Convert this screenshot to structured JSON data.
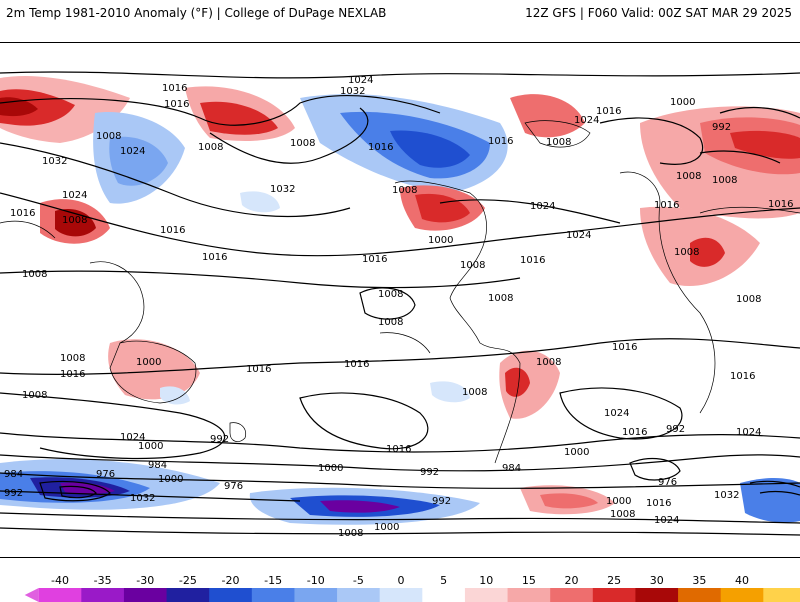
{
  "header": {
    "title_left": "2m Temp 1981-2010 Anomaly (°F) | College of DuPage NEXLAB",
    "title_right": "12Z GFS | F060 Valid: 00Z SAT MAR 29 2025"
  },
  "colorbar": {
    "tick_labels": [
      "-40",
      "-35",
      "-30",
      "-25",
      "-20",
      "-15",
      "-10",
      "-5",
      "0",
      "5",
      "10",
      "15",
      "20",
      "25",
      "30",
      "35",
      "40"
    ],
    "segment_colors": [
      "#e040e0",
      "#9a1ac8",
      "#6a00a0",
      "#2020a0",
      "#1f4fd0",
      "#4a7fe8",
      "#7aa6f0",
      "#aac8f6",
      "#d6e6fb",
      "#ffffff",
      "#fbd6d6",
      "#f6a8a8",
      "#ee6e6e",
      "#d92a2a",
      "#a80808",
      "#e06a00",
      "#f5a000",
      "#ffd24a"
    ],
    "underflow_color": "#e060e0",
    "overflow_color": "#ffe08a"
  },
  "map": {
    "contour_labels": [
      "1024",
      "1032",
      "1016",
      "1008",
      "1000",
      "992",
      "984",
      "976",
      "1032",
      "1024",
      "1016",
      "1008",
      "1000",
      "992",
      "984",
      "976",
      "1008",
      "1016",
      "1024"
    ],
    "labels_list": [
      "1016",
      "1016",
      "1008",
      "1032",
      "1024",
      "1024",
      "1016",
      "1008",
      "1016",
      "1008",
      "1016",
      "1016",
      "1008",
      "1008",
      "1016",
      "1024",
      "1032",
      "1016",
      "1008",
      "1024",
      "1016",
      "1032",
      "1008",
      "1000",
      "1024",
      "1016",
      "1008",
      "1024",
      "1016",
      "1008",
      "1016",
      "1000",
      "1008",
      "1008",
      "1008",
      "1008",
      "992",
      "1008",
      "1016",
      "1008",
      "1016",
      "1008",
      "1016",
      "1016",
      "1008",
      "1024",
      "1016",
      "1000",
      "1008",
      "1008",
      "1016",
      "1024",
      "992",
      "1024",
      "1016",
      "1000",
      "992",
      "1000",
      "984",
      "992",
      "976",
      "984",
      "976",
      "984",
      "1000",
      "1008",
      "1000",
      "1032",
      "992",
      "1032",
      "1016",
      "1024",
      "1000",
      "1000",
      "992",
      "976",
      "1008"
    ]
  }
}
